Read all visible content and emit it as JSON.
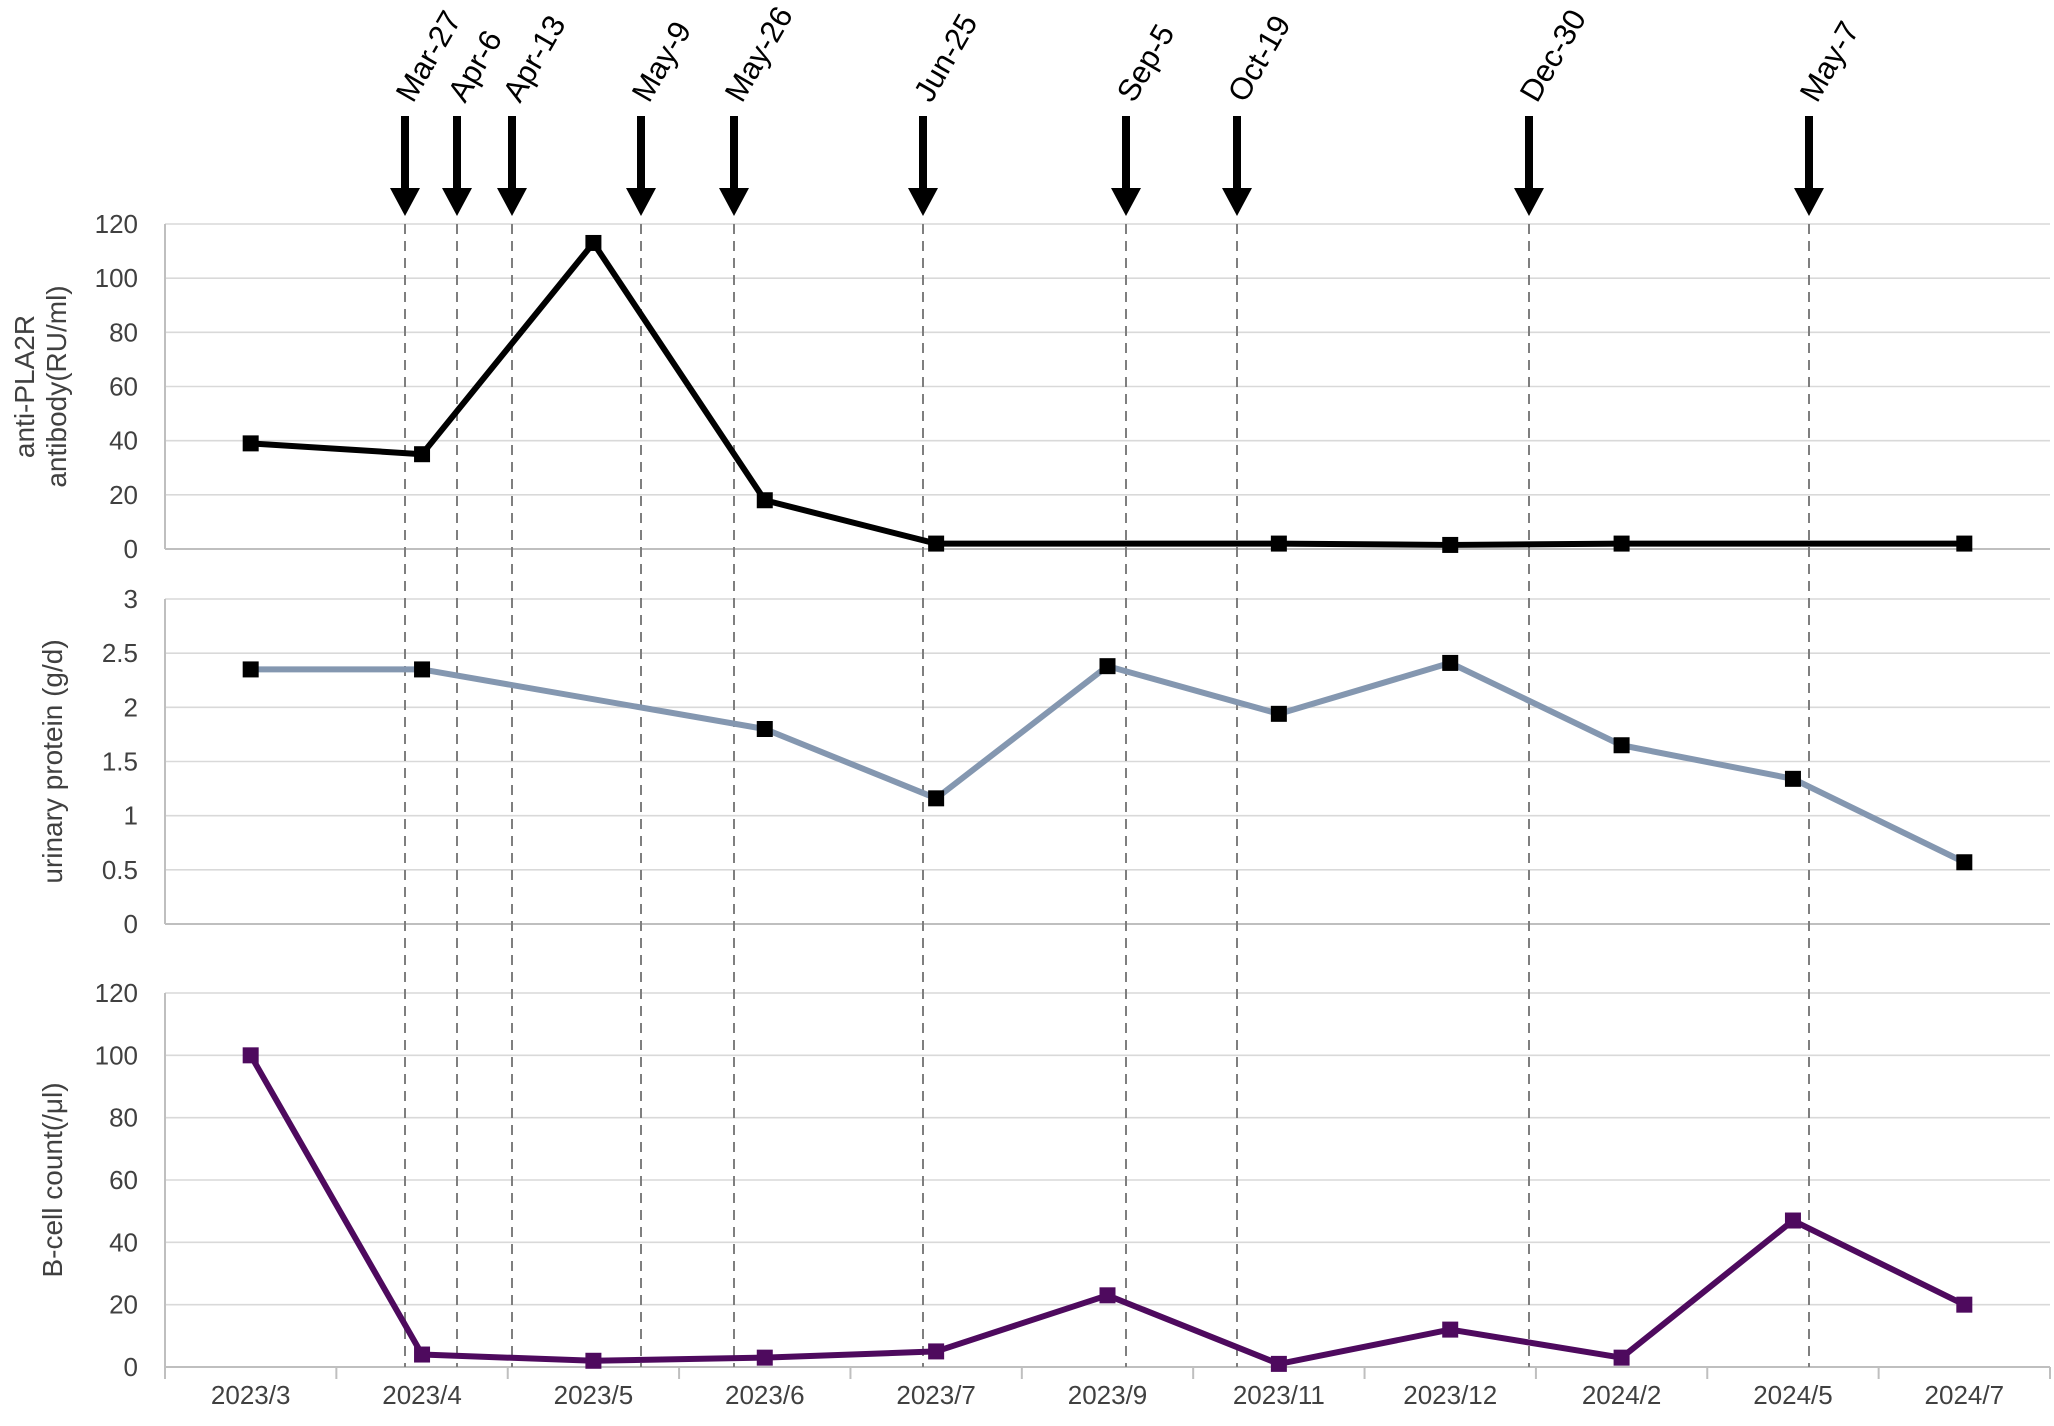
{
  "chart_data": {
    "type": "line",
    "categories": [
      "2023/3",
      "2023/4",
      "2023/5",
      "2023/6",
      "2023/7",
      "2023/9",
      "2023/11",
      "2023/12",
      "2024/2",
      "2024/5",
      "2024/7"
    ],
    "event_markers": [
      "Mar-27",
      "Apr-6",
      "Apr-13",
      "May-9",
      "May-26",
      "Jun-25",
      "Sep-5",
      "Oct-19",
      "Dec-30",
      "May-7"
    ],
    "panels": [
      {
        "ylabel": [
          "anti-PLA2R",
          "antibody(RU/ml)"
        ],
        "ylim": [
          0,
          120
        ],
        "yticks": [
          "0",
          "20",
          "40",
          "60",
          "80",
          "100",
          "120"
        ],
        "series": [
          {
            "color": "#000000",
            "points": [
              {
                "x": "2023/3",
                "y": 39
              },
              {
                "x": "2023/4",
                "y": 35
              },
              {
                "x": "2023/5",
                "y": 113
              },
              {
                "x": "2023/6",
                "y": 18
              },
              {
                "x": "2023/7",
                "y": 2
              },
              {
                "x": "2023/11",
                "y": 2
              },
              {
                "x": "2023/12",
                "y": 1.5
              },
              {
                "x": "2024/2",
                "y": 2
              },
              {
                "x": "2024/7",
                "y": 2
              }
            ]
          }
        ]
      },
      {
        "ylabel": [
          "urinary protein (g/d)"
        ],
        "ylim": [
          0,
          3
        ],
        "yticks": [
          "0",
          "0.5",
          "1",
          "1.5",
          "2",
          "2.5",
          "3"
        ],
        "series": [
          {
            "color": "#8497b0",
            "points": [
              {
                "x": "2023/3",
                "y": 2.35
              },
              {
                "x": "2023/4",
                "y": 2.35
              },
              {
                "x": "2023/6",
                "y": 1.8
              },
              {
                "x": "2023/7",
                "y": 1.16
              },
              {
                "x": "2023/9",
                "y": 2.38
              },
              {
                "x": "2023/11",
                "y": 1.94
              },
              {
                "x": "2023/12",
                "y": 2.41
              },
              {
                "x": "2024/2",
                "y": 1.65
              },
              {
                "x": "2024/5",
                "y": 1.34
              },
              {
                "x": "2024/7",
                "y": 0.57
              }
            ]
          }
        ]
      },
      {
        "ylabel": [
          "B-cell count(/μl)"
        ],
        "ylim": [
          0,
          120
        ],
        "yticks": [
          "0",
          "20",
          "40",
          "60",
          "80",
          "100",
          "120"
        ],
        "series": [
          {
            "color": "#4e0a5e",
            "points": [
              {
                "x": "2023/3",
                "y": 100
              },
              {
                "x": "2023/4",
                "y": 4
              },
              {
                "x": "2023/5",
                "y": 2
              },
              {
                "x": "2023/6",
                "y": 3
              },
              {
                "x": "2023/7",
                "y": 5
              },
              {
                "x": "2023/9",
                "y": 23
              },
              {
                "x": "2023/11",
                "y": 1
              },
              {
                "x": "2023/12",
                "y": 12
              },
              {
                "x": "2024/2",
                "y": 3
              },
              {
                "x": "2024/5",
                "y": 47
              },
              {
                "x": "2024/7",
                "y": 20
              }
            ]
          }
        ]
      }
    ],
    "grid": true,
    "legend": "none"
  }
}
